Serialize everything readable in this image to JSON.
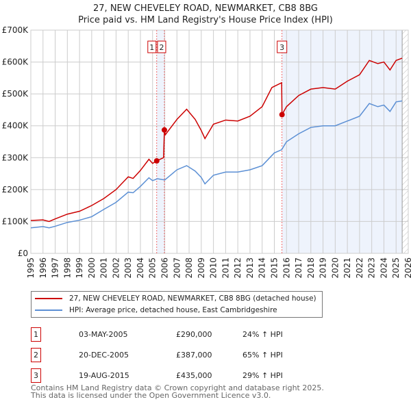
{
  "chart_data": {
    "type": "line",
    "title": "27, NEW CHEVELEY ROAD, NEWMARKET, CB8 8BG",
    "subtitle": "Price paid vs. HM Land Registry's House Price Index (HPI)",
    "xlim": [
      1995,
      2026
    ],
    "ylim": [
      0,
      700000
    ],
    "y_ticks": [
      {
        "v": 0,
        "label": "£0"
      },
      {
        "v": 100000,
        "label": "£100K"
      },
      {
        "v": 200000,
        "label": "£200K"
      },
      {
        "v": 300000,
        "label": "£300K"
      },
      {
        "v": 400000,
        "label": "£400K"
      },
      {
        "v": 500000,
        "label": "£500K"
      },
      {
        "v": 600000,
        "label": "£600K"
      },
      {
        "v": 700000,
        "label": "£700K"
      }
    ],
    "x_ticks": [
      "1995",
      "1996",
      "1997",
      "1998",
      "1999",
      "2000",
      "2001",
      "2002",
      "2003",
      "2004",
      "2005",
      "2006",
      "2007",
      "2008",
      "2009",
      "2010",
      "2011",
      "2012",
      "2013",
      "2014",
      "2015",
      "2016",
      "2017",
      "2018",
      "2019",
      "2020",
      "2021",
      "2022",
      "2023",
      "2024",
      "2025",
      "2026"
    ],
    "series": [
      {
        "name": "27, NEW CHEVELEY ROAD, NEWMARKET, CB8 8BG (detached house)",
        "color": "#cc0000",
        "x": [
          1995,
          1996,
          1996.5,
          1997,
          1998,
          1999,
          2000,
          2001,
          2002,
          2003,
          2003.4,
          2004,
          2004.7,
          2005.0,
          2005.34,
          2005.9,
          2005.97,
          2006.05,
          2007,
          2007.8,
          2008.5,
          2009,
          2009.3,
          2010,
          2011,
          2012,
          2013,
          2014,
          2014.8,
          2015.6,
          2015.63,
          2016,
          2017,
          2018,
          2019,
          2020,
          2021,
          2022,
          2022.8,
          2023.5,
          2024,
          2024.5,
          2025,
          2025.5
        ],
        "y": [
          103000,
          105000,
          100000,
          108000,
          123000,
          132000,
          150000,
          172000,
          200000,
          240000,
          235000,
          260000,
          295000,
          282000,
          290000,
          300000,
          387000,
          372000,
          420000,
          452000,
          420000,
          385000,
          360000,
          405000,
          418000,
          415000,
          430000,
          460000,
          520000,
          535000,
          435000,
          460000,
          495000,
          515000,
          520000,
          515000,
          540000,
          560000,
          605000,
          595000,
          600000,
          575000,
          605000,
          612000
        ]
      },
      {
        "name": "HPI: Average price, detached house, East Cambridgeshire",
        "color": "#5b8fd4",
        "x": [
          1995,
          1996,
          1996.5,
          1997,
          1998,
          1999,
          2000,
          2001,
          2002,
          2003,
          2003.4,
          2004,
          2004.7,
          2005.0,
          2005.4,
          2006,
          2007,
          2007.8,
          2008.5,
          2009,
          2009.3,
          2010,
          2011,
          2012,
          2013,
          2014,
          2015,
          2015.6,
          2016,
          2017,
          2018,
          2019,
          2020,
          2021,
          2022,
          2022.8,
          2023.5,
          2024,
          2024.5,
          2025,
          2025.5
        ],
        "y": [
          80000,
          84000,
          80000,
          85000,
          97000,
          104000,
          115000,
          138000,
          160000,
          192000,
          190000,
          210000,
          237000,
          228000,
          234000,
          230000,
          262000,
          275000,
          258000,
          238000,
          218000,
          245000,
          255000,
          255000,
          262000,
          275000,
          315000,
          325000,
          350000,
          375000,
          395000,
          400000,
          400000,
          415000,
          430000,
          470000,
          460000,
          465000,
          445000,
          475000,
          478000
        ]
      }
    ],
    "sales": [
      {
        "n": "1",
        "x": 2005.34,
        "price": 290000,
        "date": "03-MAY-2005",
        "price_label": "£290,000",
        "hpi": "24% ↑ HPI"
      },
      {
        "n": "2",
        "x": 2005.97,
        "price": 387000,
        "date": "20-DEC-2005",
        "price_label": "£387,000",
        "hpi": "65% ↑ HPI"
      },
      {
        "n": "3",
        "x": 2015.63,
        "price": 435000,
        "date": "19-AUG-2015",
        "price_label": "£435,000",
        "hpi": "29% ↑ HPI"
      }
    ],
    "data_end": 2025.5,
    "legend_placement": "below"
  },
  "footer": {
    "line1": "Contains HM Land Registry data © Crown copyright and database right 2025.",
    "line2": "This data is licensed under the Open Government Licence v3.0."
  }
}
